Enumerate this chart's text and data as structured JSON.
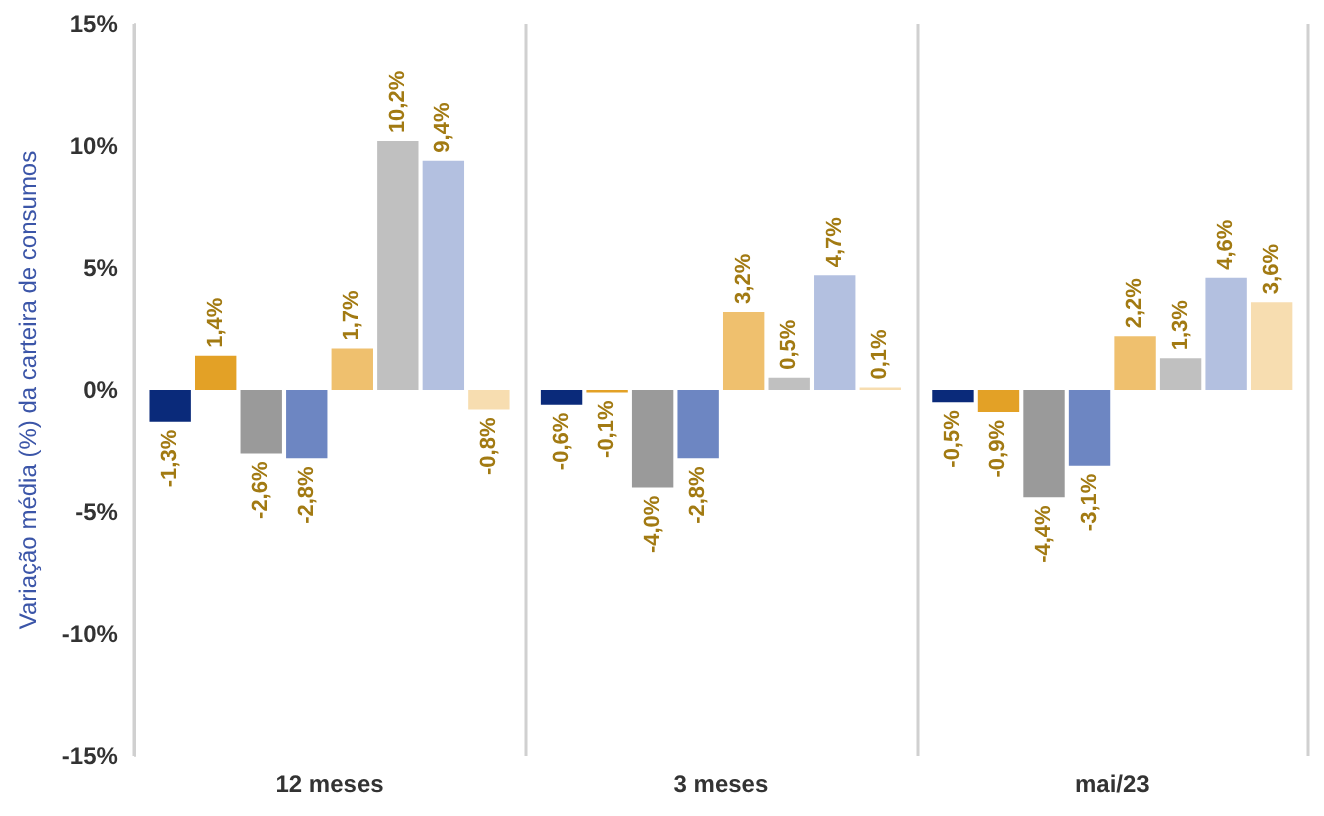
{
  "chart_data": {
    "type": "bar",
    "ylabel": "Variação média (%) da carteira de consumos",
    "categories": [
      "12 meses",
      "3 meses",
      "mai/23"
    ],
    "series": [
      {
        "color": "#0a2a7a",
        "values": [
          -1.3,
          -0.6,
          -0.5
        ],
        "value_labels": [
          "-1,3%",
          "-0,6%",
          "-0,5%"
        ]
      },
      {
        "color": "#e3a126",
        "values": [
          1.4,
          -0.1,
          -0.9
        ],
        "value_labels": [
          "1,4%",
          "-0,1%",
          "-0,9%"
        ]
      },
      {
        "color": "#9a9a9a",
        "values": [
          -2.6,
          -4.0,
          -4.4
        ],
        "value_labels": [
          "-2,6%",
          "-4,0%",
          "-4,4%"
        ]
      },
      {
        "color": "#6d86c2",
        "values": [
          -2.8,
          -2.8,
          -3.1
        ],
        "value_labels": [
          "-2,8%",
          "-2,8%",
          "-3,1%"
        ]
      },
      {
        "color": "#efc06e",
        "values": [
          1.7,
          3.2,
          2.2
        ],
        "value_labels": [
          "1,7%",
          "3,2%",
          "2,2%"
        ]
      },
      {
        "color": "#c0c0c0",
        "values": [
          10.2,
          0.5,
          1.3
        ],
        "value_labels": [
          "10,2%",
          "0,5%",
          "1,3%"
        ]
      },
      {
        "color": "#b3c0e0",
        "values": [
          9.4,
          4.7,
          4.6
        ],
        "value_labels": [
          "9,4%",
          "4,7%",
          "4,6%"
        ]
      },
      {
        "color": "#f7ddb0",
        "values": [
          -0.8,
          0.1,
          3.6
        ],
        "value_labels": [
          "-0,8%",
          "0,1%",
          "3,6%"
        ]
      }
    ],
    "ylim": [
      -15,
      15
    ],
    "yticks": [
      {
        "value": -15,
        "label": "-15%"
      },
      {
        "value": -10,
        "label": "-10%"
      },
      {
        "value": -5,
        "label": "-5%"
      },
      {
        "value": 0,
        "label": "0%"
      },
      {
        "value": 5,
        "label": "5%"
      },
      {
        "value": 10,
        "label": "10%"
      },
      {
        "value": 15,
        "label": "15%"
      }
    ],
    "grid": "x"
  }
}
